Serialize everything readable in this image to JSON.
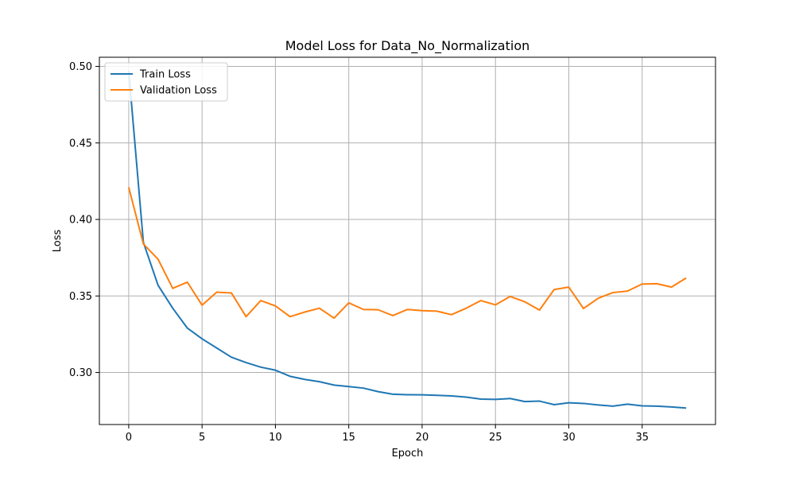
{
  "chart_data": {
    "type": "line",
    "title": "Model Loss for Data_No_Normalization",
    "xlabel": "Epoch",
    "ylabel": "Loss",
    "xlim": [
      -2.0,
      40.0
    ],
    "ylim": [
      0.266,
      0.506
    ],
    "xticks": [
      0,
      5,
      10,
      15,
      20,
      25,
      30,
      35
    ],
    "yticks": [
      0.3,
      0.35,
      0.4,
      0.45,
      0.5
    ],
    "ytick_labels": [
      "0.30",
      "0.35",
      "0.40",
      "0.45",
      "0.50"
    ],
    "grid": true,
    "legend": {
      "placement": "top-left"
    },
    "x": [
      0,
      1,
      2,
      3,
      4,
      5,
      6,
      7,
      8,
      9,
      10,
      11,
      12,
      13,
      14,
      15,
      16,
      17,
      18,
      19,
      20,
      21,
      22,
      23,
      24,
      25,
      26,
      27,
      28,
      29,
      30,
      31,
      32,
      33,
      34,
      35,
      36,
      37,
      38
    ],
    "series": [
      {
        "name": "Train Loss",
        "color": "#1f77b4",
        "values": [
          0.497,
          0.385,
          0.357,
          0.342,
          0.329,
          0.322,
          0.316,
          0.31,
          0.3065,
          0.3035,
          0.3015,
          0.2975,
          0.2955,
          0.294,
          0.2918,
          0.2908,
          0.2898,
          0.2875,
          0.2858,
          0.2855,
          0.2854,
          0.2851,
          0.2847,
          0.2839,
          0.2826,
          0.2824,
          0.283,
          0.281,
          0.2813,
          0.279,
          0.2802,
          0.2798,
          0.2788,
          0.278,
          0.2793,
          0.2782,
          0.278,
          0.2775,
          0.2768
        ]
      },
      {
        "name": "Validation Loss",
        "color": "#ff7f0e",
        "values": [
          0.421,
          0.384,
          0.374,
          0.355,
          0.359,
          0.344,
          0.3525,
          0.352,
          0.3365,
          0.347,
          0.3435,
          0.3365,
          0.3395,
          0.342,
          0.3355,
          0.3455,
          0.3412,
          0.341,
          0.3372,
          0.3412,
          0.3404,
          0.3401,
          0.3378,
          0.342,
          0.347,
          0.3442,
          0.3497,
          0.3462,
          0.3408,
          0.3542,
          0.3558,
          0.3418,
          0.3485,
          0.3522,
          0.3532,
          0.3578,
          0.358,
          0.3558,
          0.3618
        ]
      }
    ]
  }
}
